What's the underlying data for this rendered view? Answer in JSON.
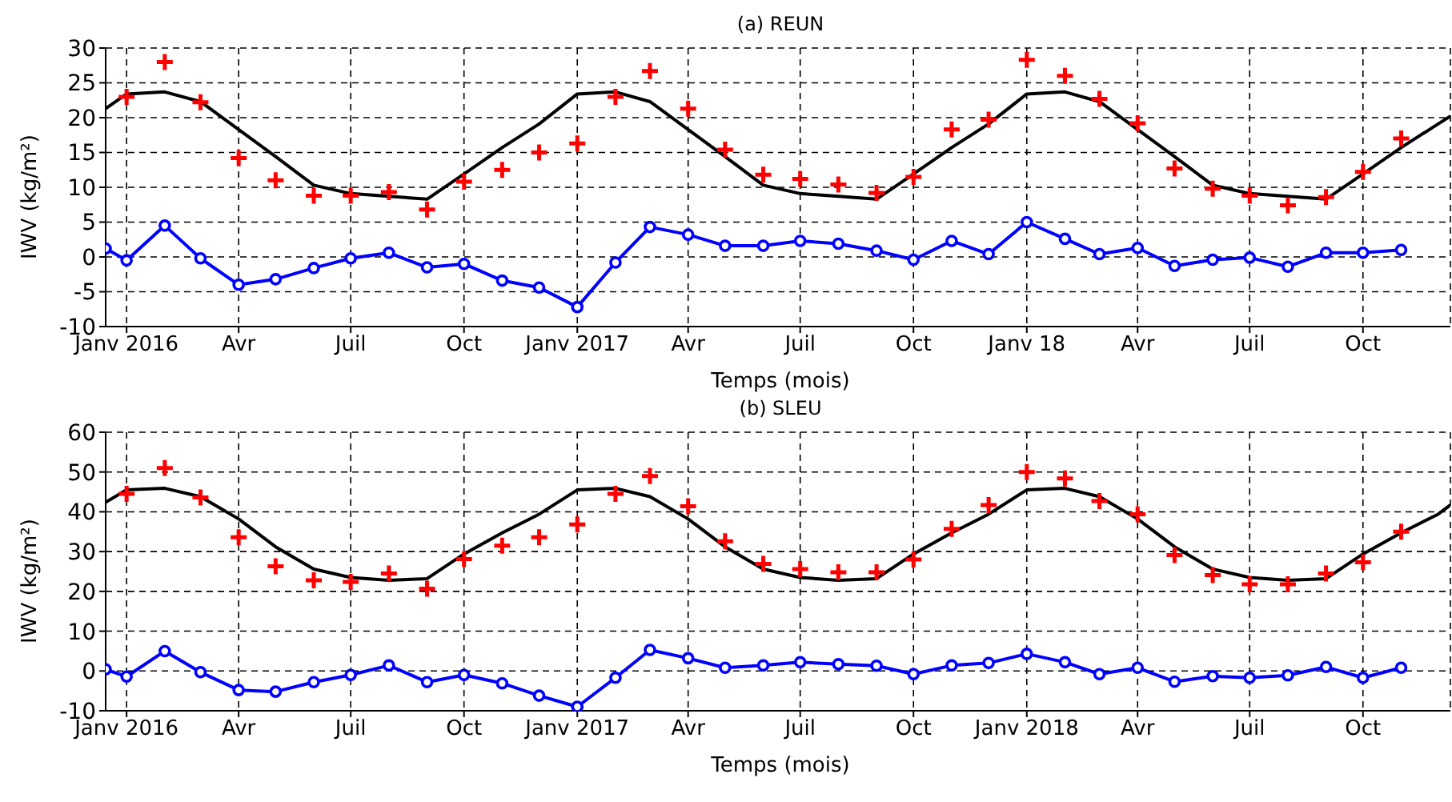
{
  "chart_data": [
    {
      "type": "line",
      "title": "(a) REUN",
      "xlabel": "Temps (mois)",
      "ylabel": "IWV (kg/m²)",
      "grid": true,
      "xlim": [
        "2015-12-15",
        "2018-12-11"
      ],
      "ylim": [
        -10,
        30
      ],
      "yticks": [
        -10,
        -5,
        0,
        5,
        10,
        15,
        20,
        25,
        30
      ],
      "xticks": [
        {
          "value": "2016-01",
          "label": "Janv 2016"
        },
        {
          "value": "2016-04",
          "label": "Avr"
        },
        {
          "value": "2016-07",
          "label": "Juil"
        },
        {
          "value": "2016-10",
          "label": "Oct"
        },
        {
          "value": "2017-01",
          "label": "Janv 2017"
        },
        {
          "value": "2017-04",
          "label": "Avr"
        },
        {
          "value": "2017-07",
          "label": "Juil"
        },
        {
          "value": "2017-10",
          "label": "Oct"
        },
        {
          "value": "2018-01",
          "label": "Janv 18"
        },
        {
          "value": "2018-04",
          "label": "Avr"
        },
        {
          "value": "2018-07",
          "label": "Juil"
        },
        {
          "value": "2018-10",
          "label": "Oct"
        }
      ],
      "series": [
        {
          "type": "line",
          "color": "#000000",
          "marker": "none",
          "line_style": "solid",
          "x": [
            "2015-12-15",
            "2016-01",
            "2016-02",
            "2016-03",
            "2016-04",
            "2016-05",
            "2016-06",
            "2016-07",
            "2016-08",
            "2016-09",
            "2016-10",
            "2016-11",
            "2016-12",
            "2017-01",
            "2017-02",
            "2017-03",
            "2017-04",
            "2017-05",
            "2017-06",
            "2017-07",
            "2017-08",
            "2017-09",
            "2017-10",
            "2017-11",
            "2017-12",
            "2018-01",
            "2018-02",
            "2018-03",
            "2018-04",
            "2018-05",
            "2018-06",
            "2018-07",
            "2018-08",
            "2018-09",
            "2018-10",
            "2018-11",
            "2018-12",
            "2018-12-11"
          ],
          "values": [
            21.3,
            23.4,
            23.7,
            22.3,
            18.3,
            14.4,
            10.3,
            9.1,
            8.7,
            8.3,
            11.9,
            15.7,
            19.1,
            23.4,
            23.7,
            22.3,
            18.3,
            14.4,
            10.3,
            9.1,
            8.7,
            8.3,
            11.9,
            15.7,
            19.1,
            23.4,
            23.7,
            22.3,
            18.3,
            14.4,
            10.3,
            9.1,
            8.7,
            8.3,
            11.9,
            15.7,
            19.1,
            20.2
          ]
        },
        {
          "type": "scatter",
          "color": "#ff0000",
          "marker": "cross",
          "x": [
            "2016-01",
            "2016-02",
            "2016-03",
            "2016-04",
            "2016-05",
            "2016-06",
            "2016-07",
            "2016-08",
            "2016-09",
            "2016-10",
            "2016-11",
            "2016-12",
            "2017-01",
            "2017-02",
            "2017-03",
            "2017-04",
            "2017-05",
            "2017-06",
            "2017-07",
            "2017-08",
            "2017-09",
            "2017-10",
            "2017-11",
            "2017-12",
            "2018-01",
            "2018-02",
            "2018-03",
            "2018-04",
            "2018-05",
            "2018-06",
            "2018-07",
            "2018-08",
            "2018-09",
            "2018-10",
            "2018-11"
          ],
          "values": [
            23,
            28,
            22.2,
            14.2,
            11,
            8.8,
            8.8,
            9.3,
            6.8,
            10.8,
            12.5,
            15,
            16.3,
            23,
            26.7,
            21.3,
            15.4,
            11.8,
            11.2,
            10.4,
            9.2,
            11.5,
            18.3,
            19.7,
            28.3,
            26,
            22.7,
            19.2,
            12.7,
            9.8,
            8.8,
            7.4,
            8.6,
            12.2,
            17
          ]
        },
        {
          "type": "line",
          "color": "#0000ff",
          "marker": "circle",
          "line_style": "solid",
          "x": [
            "2015-12-15",
            "2016-01",
            "2016-02",
            "2016-03",
            "2016-04",
            "2016-05",
            "2016-06",
            "2016-07",
            "2016-08",
            "2016-09",
            "2016-10",
            "2016-11",
            "2016-12",
            "2017-01",
            "2017-02",
            "2017-03",
            "2017-04",
            "2017-05",
            "2017-06",
            "2017-07",
            "2017-08",
            "2017-09",
            "2017-10",
            "2017-11",
            "2017-12",
            "2018-01",
            "2018-02",
            "2018-03",
            "2018-04",
            "2018-05",
            "2018-06",
            "2018-07",
            "2018-08",
            "2018-09",
            "2018-10",
            "2018-11"
          ],
          "values": [
            1.2,
            -0.5,
            4.5,
            -0.2,
            -4,
            -3.2,
            -1.6,
            -0.2,
            0.6,
            -1.5,
            -1,
            -3.4,
            -4.4,
            -7.2,
            -0.8,
            4.3,
            3.2,
            1.6,
            1.6,
            2.3,
            1.9,
            0.9,
            -0.4,
            2.3,
            0.4,
            5,
            2.6,
            0.4,
            1.3,
            -1.3,
            -0.4,
            -0.1,
            -1.4,
            0.6,
            0.6,
            1
          ]
        }
      ]
    },
    {
      "type": "line",
      "title": "(b) SLEU",
      "xlabel": "Temps (mois)",
      "ylabel": "IWV (kg/m²)",
      "grid": true,
      "xlim": [
        "2015-12-15",
        "2018-12-11"
      ],
      "ylim": [
        -10,
        60
      ],
      "yticks": [
        -10,
        0,
        10,
        20,
        30,
        40,
        50,
        60
      ],
      "xticks": [
        {
          "value": "2016-01",
          "label": "Janv 2016"
        },
        {
          "value": "2016-04",
          "label": "Avr"
        },
        {
          "value": "2016-07",
          "label": "Juil"
        },
        {
          "value": "2016-10",
          "label": "Oct"
        },
        {
          "value": "2017-01",
          "label": "Janv 2017"
        },
        {
          "value": "2017-04",
          "label": "Avr"
        },
        {
          "value": "2017-07",
          "label": "Juil"
        },
        {
          "value": "2017-10",
          "label": "Oct"
        },
        {
          "value": "2018-01",
          "label": "Janv 2018"
        },
        {
          "value": "2018-04",
          "label": "Avr"
        },
        {
          "value": "2018-07",
          "label": "Juil"
        },
        {
          "value": "2018-10",
          "label": "Oct"
        }
      ],
      "series": [
        {
          "type": "line",
          "color": "#000000",
          "marker": "none",
          "line_style": "solid",
          "x": [
            "2015-12-15",
            "2016-01",
            "2016-02",
            "2016-03",
            "2016-04",
            "2016-05",
            "2016-06",
            "2016-07",
            "2016-08",
            "2016-09",
            "2016-10",
            "2016-11",
            "2016-12",
            "2017-01",
            "2017-02",
            "2017-03",
            "2017-04",
            "2017-05",
            "2017-06",
            "2017-07",
            "2017-08",
            "2017-09",
            "2017-10",
            "2017-11",
            "2017-12",
            "2018-01",
            "2018-02",
            "2018-03",
            "2018-04",
            "2018-05",
            "2018-06",
            "2018-07",
            "2018-08",
            "2018-09",
            "2018-10",
            "2018-11",
            "2018-12",
            "2018-12-11"
          ],
          "values": [
            42.4,
            45.5,
            45.9,
            43.8,
            38.2,
            31.2,
            25.6,
            23.5,
            22.8,
            23.2,
            29.4,
            34.7,
            39.4,
            45.5,
            45.9,
            43.8,
            38.2,
            31.2,
            25.6,
            23.5,
            22.8,
            23.2,
            29.4,
            34.7,
            39.4,
            45.5,
            45.9,
            43.8,
            38.2,
            31.2,
            25.6,
            23.5,
            22.8,
            23.2,
            29.4,
            34.7,
            39.4,
            41.7
          ]
        },
        {
          "type": "scatter",
          "color": "#ff0000",
          "marker": "cross",
          "x": [
            "2016-01",
            "2016-02",
            "2016-03",
            "2016-04",
            "2016-05",
            "2016-06",
            "2016-07",
            "2016-08",
            "2016-09",
            "2016-10",
            "2016-11",
            "2016-12",
            "2017-01",
            "2017-02",
            "2017-03",
            "2017-04",
            "2017-05",
            "2017-06",
            "2017-07",
            "2017-08",
            "2017-09",
            "2017-10",
            "2017-11",
            "2017-12",
            "2018-01",
            "2018-02",
            "2018-03",
            "2018-04",
            "2018-05",
            "2018-06",
            "2018-07",
            "2018-08",
            "2018-09",
            "2018-10",
            "2018-11"
          ],
          "values": [
            44.5,
            51,
            43.6,
            33.6,
            26.3,
            22.8,
            22.4,
            24.5,
            20.7,
            28.1,
            31.5,
            33.6,
            36.8,
            44.5,
            49,
            41.4,
            32.6,
            26.9,
            25.6,
            24.8,
            24.8,
            28,
            35.7,
            41.7,
            50,
            48.4,
            42.7,
            39.4,
            29.1,
            24.1,
            21.8,
            21.8,
            24.5,
            27.3,
            35
          ]
        },
        {
          "type": "line",
          "color": "#0000ff",
          "marker": "circle",
          "line_style": "solid",
          "x": [
            "2015-12-15",
            "2016-01",
            "2016-02",
            "2016-03",
            "2016-04",
            "2016-05",
            "2016-06",
            "2016-07",
            "2016-08",
            "2016-09",
            "2016-10",
            "2016-11",
            "2016-12",
            "2017-01",
            "2017-02",
            "2017-03",
            "2017-04",
            "2017-05",
            "2017-06",
            "2017-07",
            "2017-08",
            "2017-09",
            "2017-10",
            "2017-11",
            "2017-12",
            "2018-01",
            "2018-02",
            "2018-03",
            "2018-04",
            "2018-05",
            "2018-06",
            "2018-07",
            "2018-08",
            "2018-09",
            "2018-10",
            "2018-11"
          ],
          "values": [
            0.4,
            -1.4,
            5,
            -0.3,
            -4.8,
            -5.2,
            -2.8,
            -1,
            1.4,
            -2.8,
            -1,
            -3.1,
            -6.2,
            -9,
            -1.7,
            5.3,
            3.2,
            0.8,
            1.4,
            2.2,
            1.7,
            1.3,
            -0.8,
            1.4,
            2,
            4.3,
            2.2,
            -0.8,
            0.8,
            -2.7,
            -1.3,
            -1.7,
            -1.1,
            1,
            -1.7,
            0.8
          ]
        }
      ]
    }
  ]
}
